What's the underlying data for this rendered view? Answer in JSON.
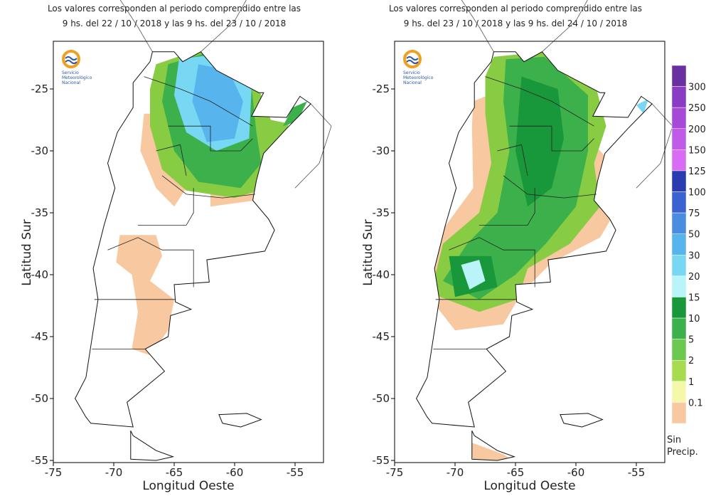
{
  "panels": [
    {
      "title_line1": "Los valores corresponden al periodo comprendido entre las",
      "title_line2": "9 hs. del 22 / 10 / 2018  y las 9 hs. del 23 / 10 / 2018",
      "logo_text": [
        "Servicio",
        "Meteorológico",
        "Nacional"
      ]
    },
    {
      "title_line1": "Los valores corresponden al periodo comprendido entre las",
      "title_line2": "9 hs. del 23 / 10 / 2018  y las 9 hs. del 24 / 10 / 2018",
      "logo_text": [
        "Servicio",
        "Meteorológico",
        "Nacional"
      ]
    }
  ],
  "axes": {
    "x_label": "Longitud Oeste",
    "y_label": "Latitud Sur",
    "lon_ticks": [
      -75,
      -70,
      -65,
      -60,
      -55
    ],
    "lat_ticks": [
      -25,
      -30,
      -35,
      -40,
      -45,
      -50,
      -55
    ]
  },
  "legend": {
    "labels": [
      "300",
      "250",
      "200",
      "150",
      "125",
      "100",
      "75",
      "50",
      "30",
      "20",
      "15",
      "10",
      "5",
      "2",
      "1",
      "0.1"
    ],
    "colors": [
      "#6a2fa0",
      "#8a3cc4",
      "#a64ad8",
      "#c05ae8",
      "#d86cf5",
      "#2a3cb0",
      "#3a62d0",
      "#4a8ce0",
      "#58b4ec",
      "#78d8f4",
      "#b8f4f8",
      "#18983a",
      "#3cb04a",
      "#6cc84e",
      "#a8dc50",
      "#f4f8a8",
      "#f8c8a0"
    ],
    "no_precip": [
      "Sin",
      "Precip."
    ]
  }
}
